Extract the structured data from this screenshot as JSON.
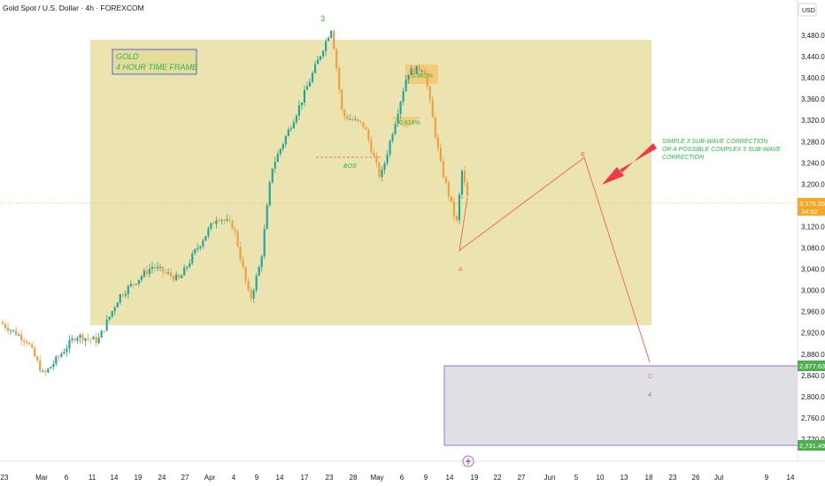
{
  "header": {
    "symbol_title": "Gold Spot / U.S. Dollar · 4h · FOREXCOM"
  },
  "axis": {
    "currency": "USD"
  },
  "price_badges": {
    "current_price": "3,175.25",
    "countdown": "34:52",
    "upper_level": "2,877.63",
    "lower_level": "2,731.49"
  },
  "info_box": {
    "line1": "GOLD",
    "line2": "4 HOUR TIME FRAME"
  },
  "annotations": {
    "correction_note": [
      "SIMPLE 3 SUB-WAVE CORRECTION",
      "OR A POSSIBLE COMPLEX 5 SUB-WAVE",
      "CORRECTION"
    ],
    "wave3": "3",
    "waveA": "A",
    "waveB": "B",
    "waveC": "C",
    "wave4": "4",
    "bos": "BOS",
    "fib_0618": "0.618%",
    "fib_0965": "0.965%"
  },
  "colors": {
    "bull": "#26a69a",
    "bear": "#f0a043",
    "zone": "#e8df9e",
    "projection": "#f26c5c",
    "arrow": "#f23645",
    "note": "#2fb34a",
    "purple_box": "#9c6fd6",
    "badge_green": "#4caf50",
    "badge_orange": "#f5a623"
  },
  "chart_data": {
    "type": "candlestick",
    "title": "Gold Spot / U.S. Dollar · 4h · FOREXCOM",
    "ylim": [
      2720,
      3500
    ],
    "y_ticks": [
      "3,480.00",
      "3,440.00",
      "3,400.00",
      "3,360.00",
      "3,320.00",
      "3,280.00",
      "3,240.00",
      "3,200.00",
      "3,160.00",
      "3,120.00",
      "3,080.00",
      "3,040.00",
      "3,000.00",
      "2,960.00",
      "2,920.00",
      "2,880.00",
      "2,840.00",
      "2,800.00",
      "2,760.00",
      "2,720.00"
    ],
    "x_ticks": [
      "23",
      "Mar",
      "6",
      "11",
      "14",
      "19",
      "24",
      "27",
      "Apr",
      "4",
      "9",
      "14",
      "17",
      "23",
      "28",
      "May",
      "6",
      "9",
      "14",
      "19",
      "22",
      "27",
      "Jun",
      "5",
      "10",
      "13",
      "18",
      "23",
      "26",
      "Jul",
      "9",
      "14"
    ],
    "series": [
      {
        "name": "price",
        "points": [
          [
            "2025-02-20",
            2940
          ],
          [
            "2025-02-25",
            2905
          ],
          [
            "2025-02-28",
            2840
          ],
          [
            "2025-03-06",
            2915
          ],
          [
            "2025-03-10",
            2905
          ],
          [
            "2025-03-14",
            2990
          ],
          [
            "2025-03-20",
            3045
          ],
          [
            "2025-03-25",
            3020
          ],
          [
            "2025-03-28",
            3075
          ],
          [
            "2025-04-01",
            3140
          ],
          [
            "2025-04-04",
            3120
          ],
          [
            "2025-04-07",
            2980
          ],
          [
            "2025-04-09",
            3055
          ],
          [
            "2025-04-11",
            3230
          ],
          [
            "2025-04-16",
            3345
          ],
          [
            "2025-04-22",
            3495
          ],
          [
            "2025-04-24",
            3330
          ],
          [
            "2025-04-28",
            3310
          ],
          [
            "2025-05-01",
            3210
          ],
          [
            "2025-05-06",
            3410
          ],
          [
            "2025-05-09",
            3420
          ],
          [
            "2025-05-12",
            3240
          ],
          [
            "2025-05-15",
            3125
          ],
          [
            "2025-05-16",
            3225
          ],
          [
            "2025-05-17",
            3175
          ]
        ]
      },
      {
        "name": "projection",
        "points": [
          [
            "2025-05-17",
            3175
          ],
          [
            "2025-05-18",
            3075
          ],
          [
            "2025-06-05",
            3250
          ],
          [
            "2025-06-18",
            2865
          ]
        ]
      }
    ],
    "levels": {
      "current": 3175.25,
      "zone_top": 2877.63,
      "zone_bottom": 2731.49,
      "bos": 3260,
      "fib_0618": 3320,
      "fib_0965": 3405
    }
  }
}
